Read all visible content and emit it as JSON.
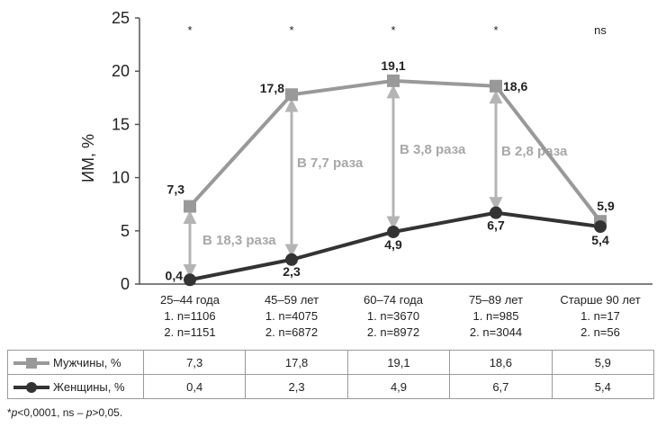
{
  "chart_data": {
    "type": "line",
    "ylabel": "ИМ, %",
    "ylim": [
      0,
      25
    ],
    "yticks": [
      0,
      5,
      10,
      15,
      20,
      25
    ],
    "categories": [
      {
        "label": "25–44 года",
        "n1": "1. n=1106",
        "n2": "2. n=1151"
      },
      {
        "label": "45–59 лет",
        "n1": "1. n=4075",
        "n2": "2. n=6872"
      },
      {
        "label": "60–74 года",
        "n1": "1. n=3670",
        "n2": "2. n=8972"
      },
      {
        "label": "75–89 лет",
        "n1": "1. n=985",
        "n2": "2. n=3044"
      },
      {
        "label": "Старше 90 лет",
        "n1": "1. n=17",
        "n2": "2. n=56"
      }
    ],
    "series": [
      {
        "name": "Мужчины, %",
        "values": [
          7.3,
          17.8,
          19.1,
          18.6,
          5.9
        ],
        "labels": [
          "7,3",
          "17,8",
          "19,1",
          "18,6",
          "5,9"
        ],
        "color": "#999999",
        "marker": "square"
      },
      {
        "name": "Женщины, %",
        "values": [
          0.4,
          2.3,
          4.9,
          6.7,
          5.4
        ],
        "labels": [
          "0,4",
          "2,3",
          "4,9",
          "6,7",
          "5,4"
        ],
        "color": "#333333",
        "marker": "circle"
      }
    ],
    "ratios": [
      "В 18,3 раза",
      "В 7,7 раза",
      "В 3,8 раза",
      "В 2,8 раза"
    ],
    "significance": [
      "*",
      "*",
      "*",
      "*",
      "ns"
    ],
    "grid": false,
    "legend": "table-below"
  },
  "footnote": {
    "p": "p",
    "rest1": "<0,0001, ns – ",
    "rest2": ">0,05."
  }
}
